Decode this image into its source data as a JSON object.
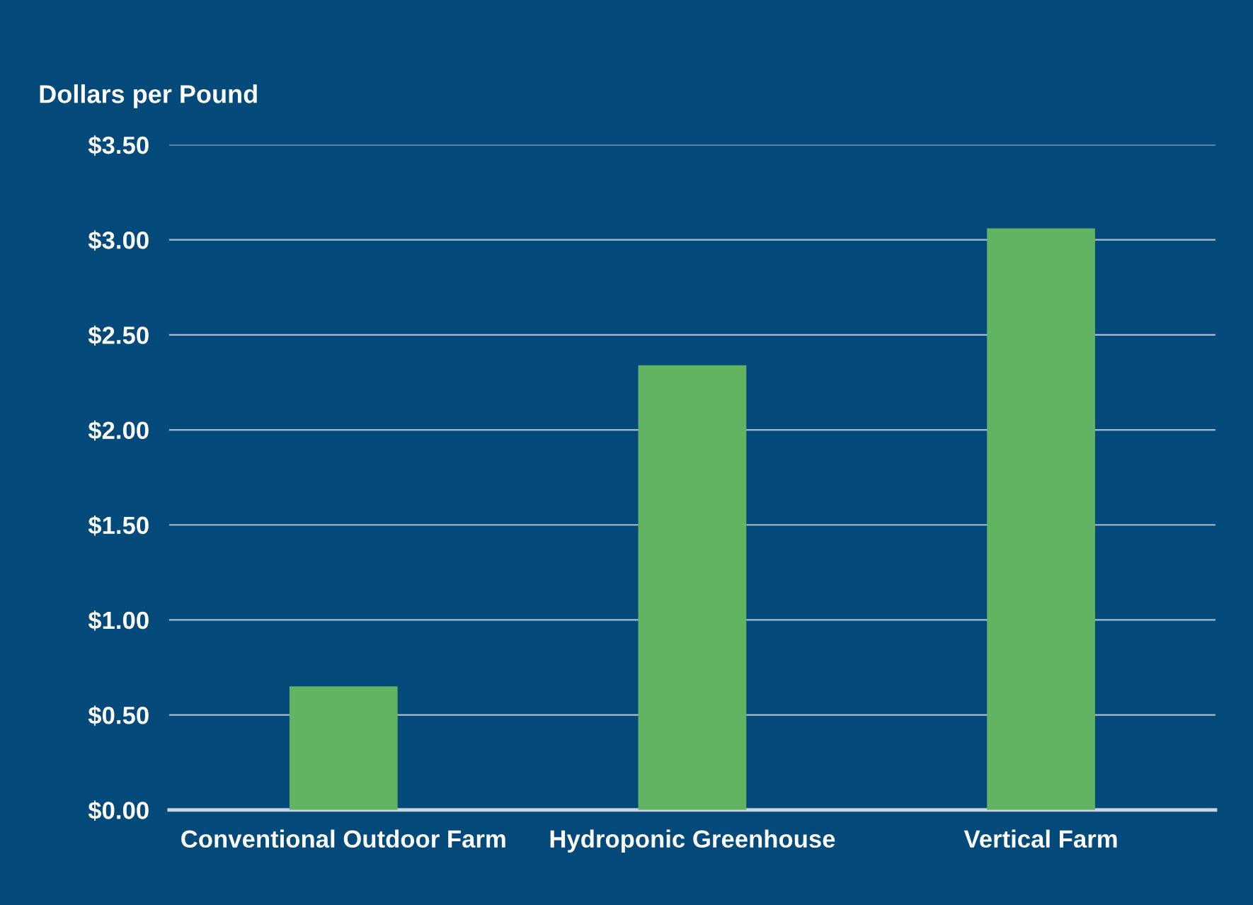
{
  "chart_data": {
    "type": "bar",
    "ylabel": "Dollars per Pound",
    "categories": [
      "Conventional Outdoor Farm",
      "Hydroponic Greenhouse",
      "Vertical Farm"
    ],
    "values": [
      0.65,
      2.34,
      3.06
    ],
    "color": "#62b462",
    "ylim": [
      0,
      3.5
    ],
    "yticks": [
      {
        "value": 0,
        "label": "$0.00"
      },
      {
        "value": 0.5,
        "label": "$0.50"
      },
      {
        "value": 1,
        "label": "$1.00"
      },
      {
        "value": 1.5,
        "label": "$1.50"
      },
      {
        "value": 2,
        "label": "$2.00"
      },
      {
        "value": 2.5,
        "label": "$2.50"
      },
      {
        "value": 3,
        "label": "$3.00"
      },
      {
        "value": 3.5,
        "label": "$3.50"
      }
    ],
    "grid": "y"
  }
}
